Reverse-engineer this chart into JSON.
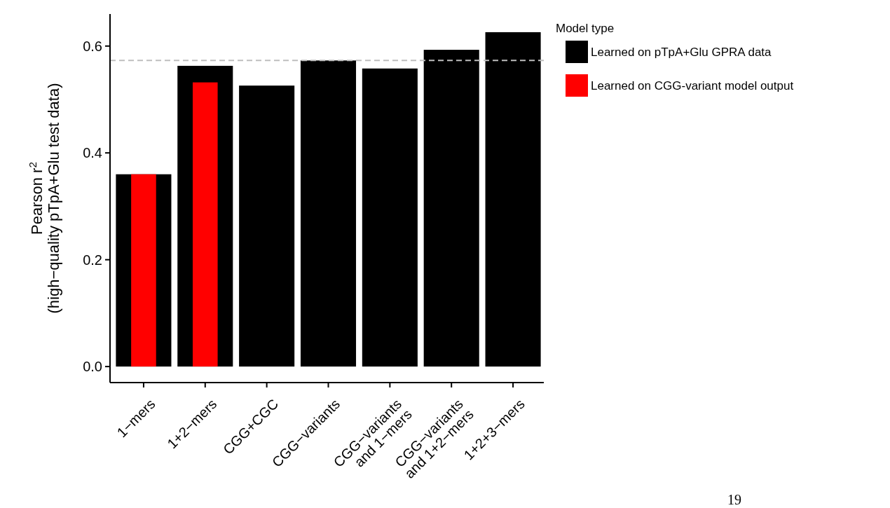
{
  "chart_data": {
    "type": "bar",
    "categories": [
      "1−mers",
      "1+2−mers",
      "CGG+CGC",
      "CGG−variants",
      "CGG−variants\nand 1−mers",
      "CGG−variants\nand 1+2−mers",
      "1+2+3−mers"
    ],
    "series": [
      {
        "name": "Learned on pTpA+Glu GPRA data",
        "color": "#000000",
        "values": [
          0.36,
          0.563,
          0.526,
          0.573,
          0.558,
          0.593,
          0.626
        ]
      },
      {
        "name": "Learned on CGG-variant model output",
        "color": "#ff0000",
        "values": [
          0.36,
          0.532,
          null,
          null,
          null,
          null,
          null
        ]
      }
    ],
    "ylabel": "Pearson $^{}$r$^{2}$\n(high−quality pTpA+Glu test data)",
    "legend_title": "Model type",
    "legend": "right",
    "ylim": [
      -0.03,
      0.66
    ],
    "yticks": [
      {
        "value": 0,
        "label": "0.0"
      },
      0.2,
      0.4,
      0.6
    ],
    "ref_lines": [
      {
        "axis": "y",
        "value": 0.573,
        "color": "#bebebe",
        "line_style": "dashed"
      }
    ],
    "annotations": [
      "19"
    ]
  }
}
